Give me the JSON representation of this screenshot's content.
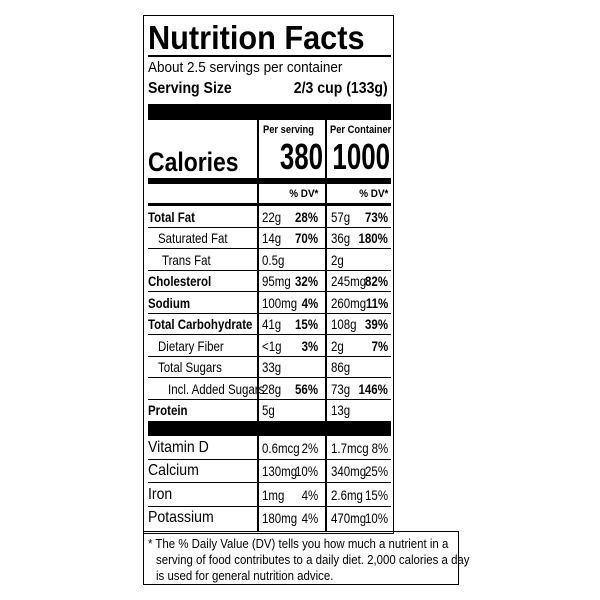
{
  "header": {
    "title": "Nutrition Facts",
    "servings": "About 2.5 servings per container",
    "serving_size_label": "Serving Size",
    "serving_size_value": "2/3 cup (133g)"
  },
  "columns": [
    "Per serving",
    "Per Container"
  ],
  "calories": {
    "label": "Calories",
    "values": [
      "380",
      "1000"
    ]
  },
  "dv_header": "% DV*",
  "nutrients": [
    {
      "name": "Total Fat",
      "per_serving": [
        "22g",
        "28%"
      ],
      "per_container": [
        "57g",
        "73%"
      ]
    },
    {
      "name": "Saturated Fat",
      "per_serving": [
        "14g",
        "70%"
      ],
      "per_container": [
        "36g",
        "180%"
      ]
    },
    {
      "name": "Trans Fat",
      "per_serving": [
        "0.5g",
        null
      ],
      "per_container": [
        "2g",
        null
      ]
    },
    {
      "name": "Cholesterol",
      "per_serving": [
        "95mg",
        "32%"
      ],
      "per_container": [
        "245mg",
        "82%"
      ]
    },
    {
      "name": "Sodium",
      "per_serving": [
        "100mg",
        "4%"
      ],
      "per_container": [
        "260mg",
        "11%"
      ]
    },
    {
      "name": "Total Carbohydrate",
      "per_serving": [
        "41g",
        "15%"
      ],
      "per_container": [
        "108g",
        "39%"
      ]
    },
    {
      "name": "Dietary Fiber",
      "per_serving": [
        "<1g",
        "3%"
      ],
      "per_container": [
        "2g",
        "7%"
      ]
    },
    {
      "name": "Total Sugars",
      "per_serving": [
        "33g",
        null
      ],
      "per_container": [
        "86g",
        null
      ]
    },
    {
      "name": "Incl. Added Sugars",
      "per_serving": [
        "28g",
        "56%"
      ],
      "per_container": [
        "73g",
        "146%"
      ]
    },
    {
      "name": "Protein",
      "per_serving": [
        "5g",
        null
      ],
      "per_container": [
        "13g",
        null
      ]
    }
  ],
  "vitamins": [
    {
      "name": "Vitamin D",
      "per_serving": [
        "0.6mcg",
        "2%"
      ],
      "per_container": [
        "1.7mcg",
        "8%"
      ]
    },
    {
      "name": "Calcium",
      "per_serving": [
        "130mg",
        "10%"
      ],
      "per_container": [
        "340mg",
        "25%"
      ]
    },
    {
      "name": "Iron",
      "per_serving": [
        "1mg",
        "4%"
      ],
      "per_container": [
        "2.6mg",
        "15%"
      ]
    },
    {
      "name": "Potassium",
      "per_serving": [
        "180mg",
        "4%"
      ],
      "per_container": [
        "470mg",
        "10%"
      ]
    }
  ],
  "footnote": [
    "* The % Daily Value (DV) tells you how much a nutrient in a",
    "serving of food contributes to a daily diet. 2,000 calories a day",
    "is used for general nutrition advice."
  ]
}
